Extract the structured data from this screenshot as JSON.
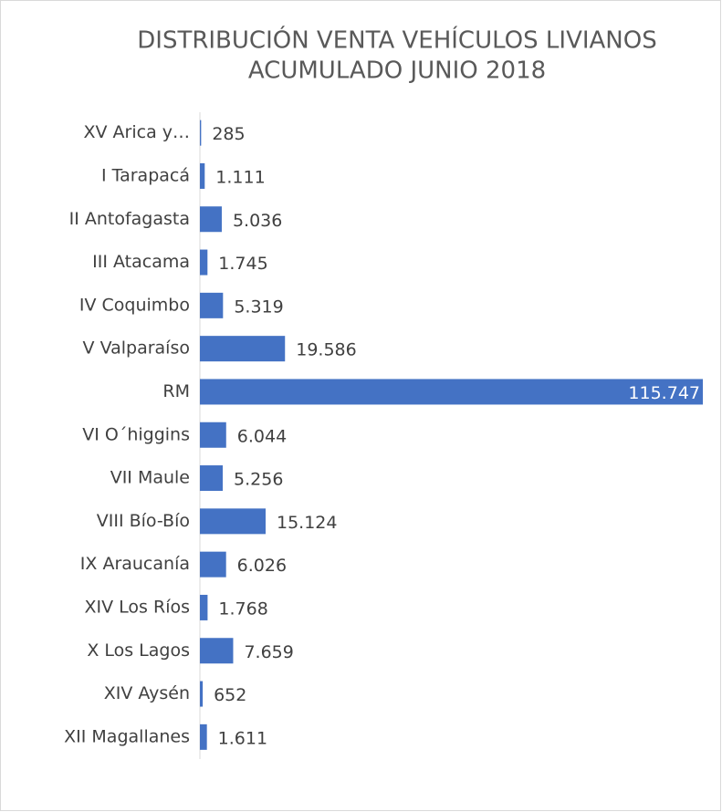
{
  "chart_data": {
    "type": "barh",
    "title": [
      "DISTRIBUCIÓN VENTA VEHÍCULOS LIVIANOS",
      "ACUMULADO JUNIO 2018"
    ],
    "categories": [
      "XV Arica y…",
      "I Tarapacá",
      "II Antofagasta",
      "III Atacama",
      "IV Coquimbo",
      "V Valparaíso",
      "RM",
      "VI O´higgins",
      "VII Maule",
      "VIII Bío-Bío",
      "IX Araucanía",
      "XIV Los Ríos",
      "X Los Lagos",
      "XIV Aysén",
      "XII Magallanes"
    ],
    "values": [
      285,
      1111,
      5036,
      1745,
      5319,
      19586,
      115747,
      6044,
      5256,
      15124,
      6026,
      1768,
      7659,
      652,
      1611
    ],
    "value_labels": [
      "285",
      "1.111",
      "5.036",
      "1.745",
      "5.319",
      "19.586",
      "115.747",
      "6.044",
      "5.256",
      "15.124",
      "6.026",
      "1.768",
      "7.659",
      "652",
      "1.611"
    ],
    "color": "#4472c4"
  }
}
